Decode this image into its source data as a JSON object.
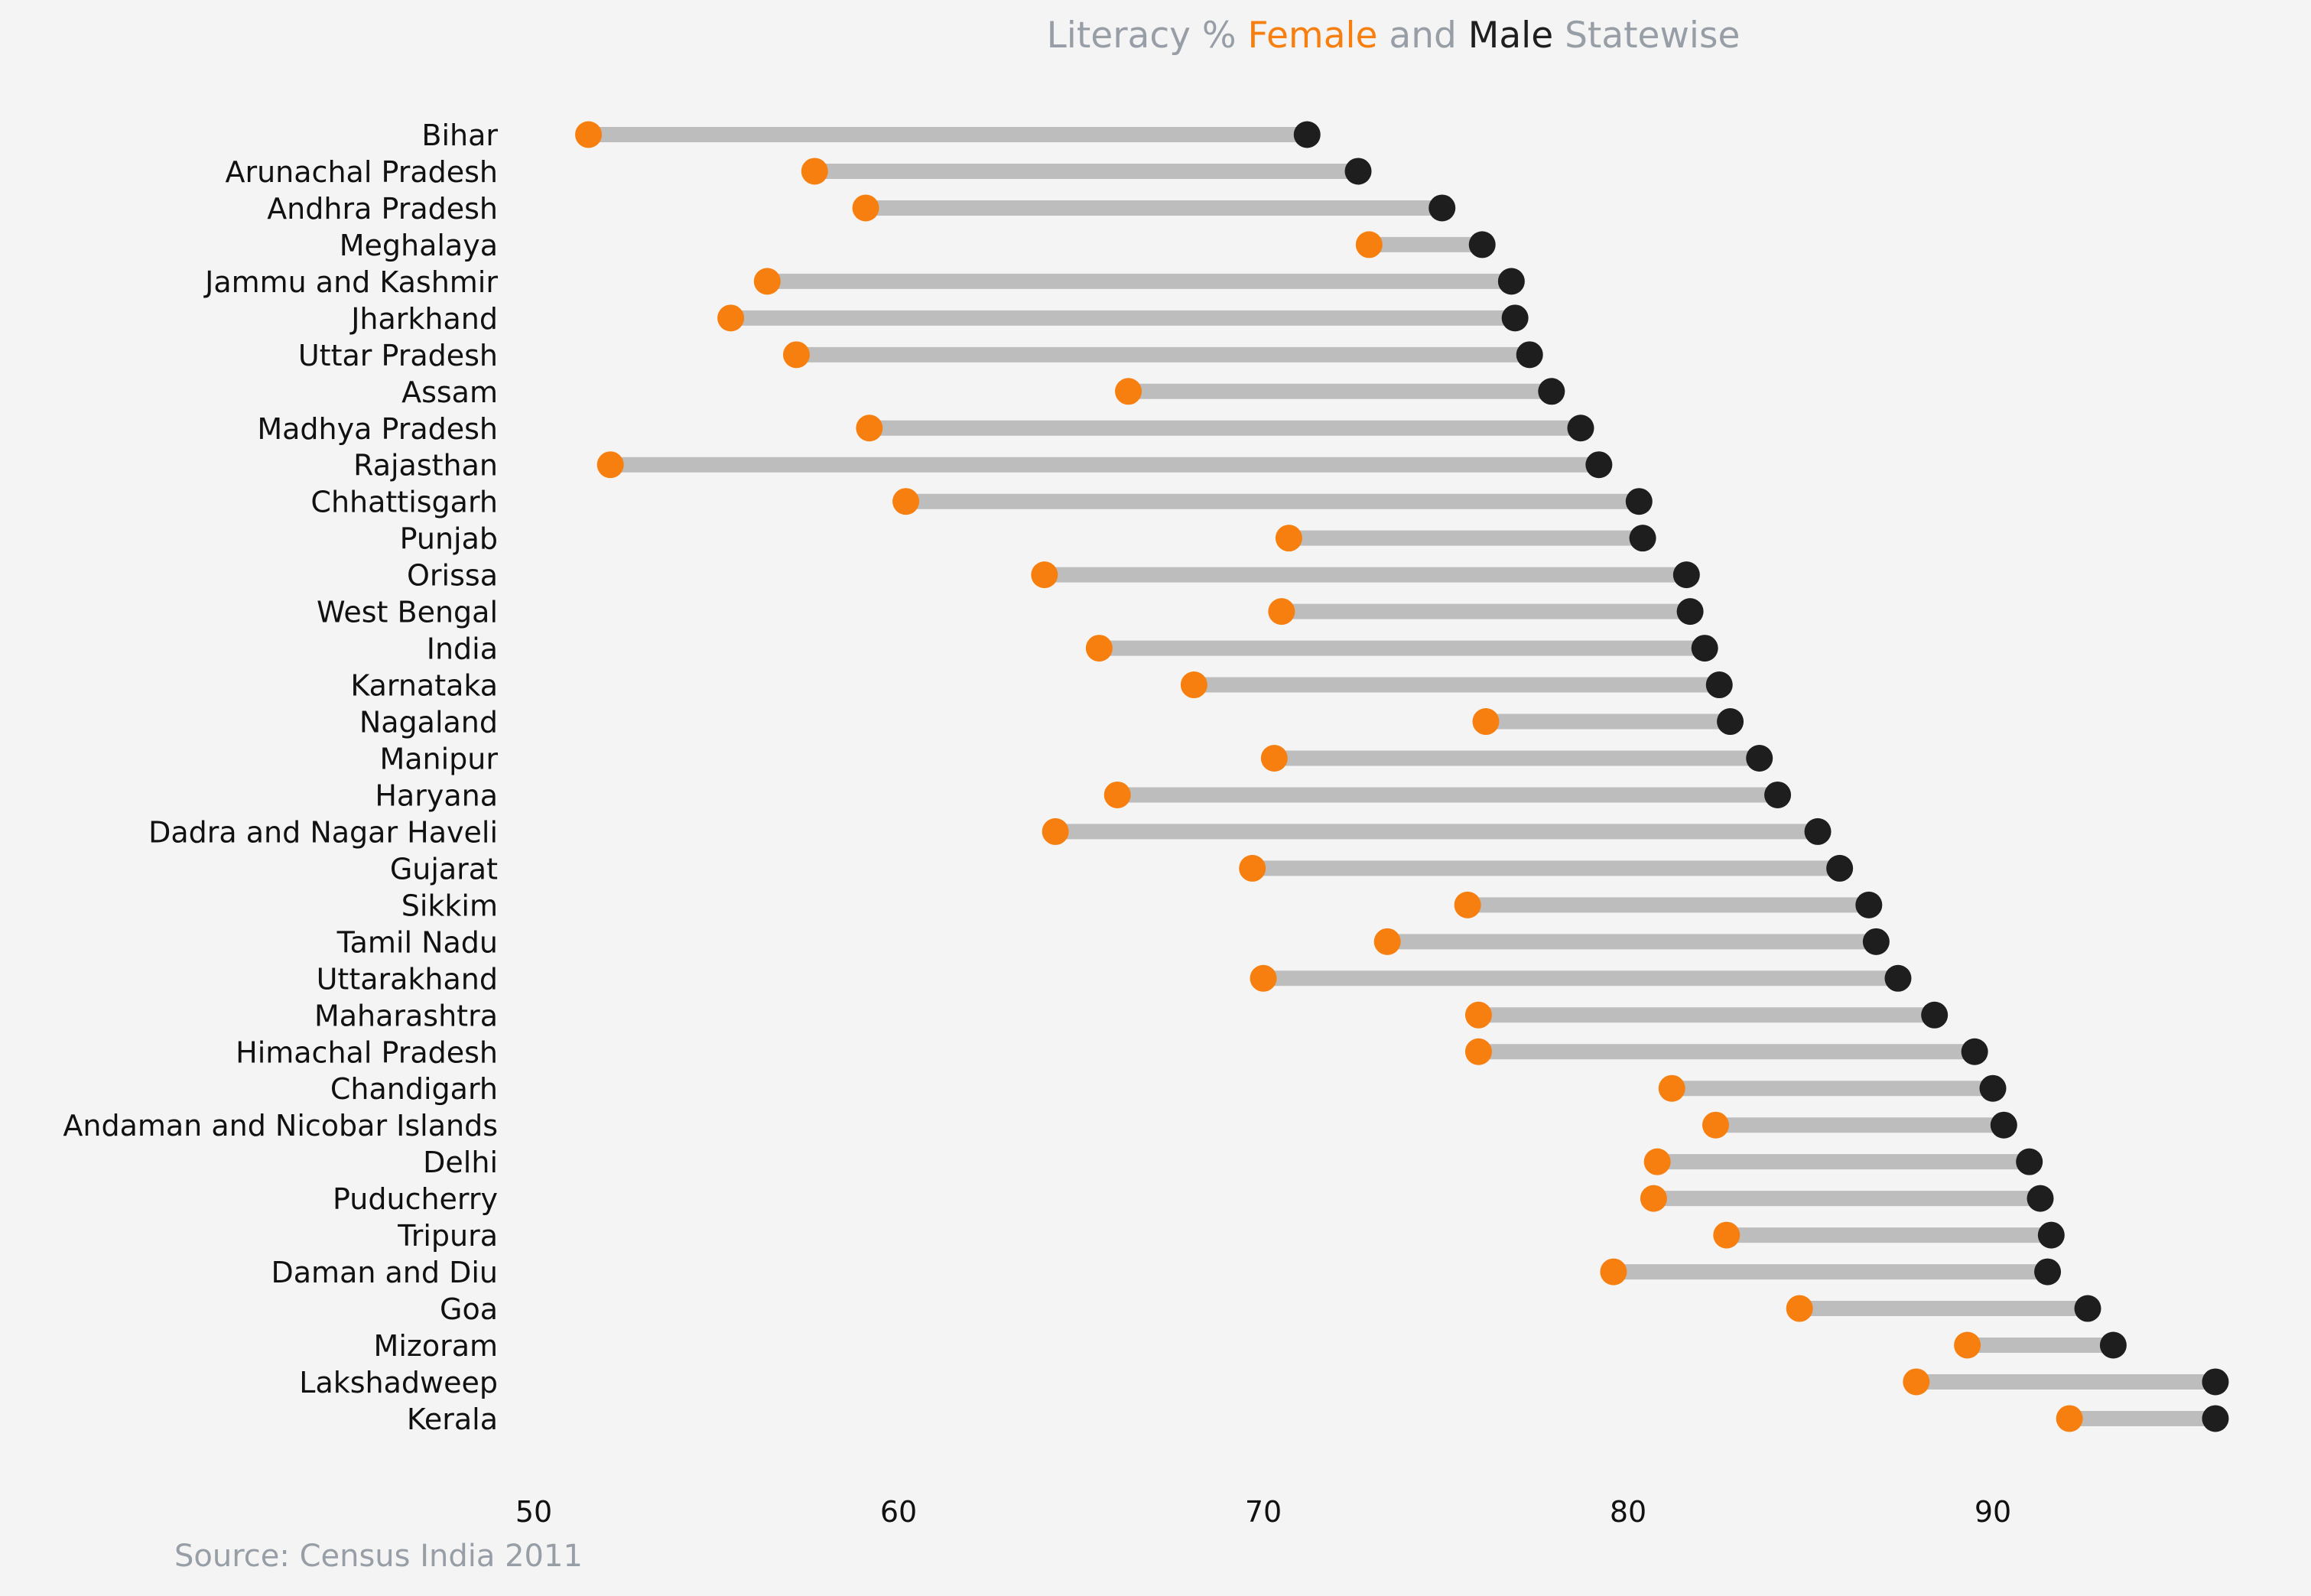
{
  "chart_data": {
    "type": "dumbbell",
    "title": {
      "parts": [
        {
          "text": "Literacy % ",
          "color": "#979ea6"
        },
        {
          "text": "Female",
          "color": "#f77f0f"
        },
        {
          "text": " and ",
          "color": "#979ea6"
        },
        {
          "text": "Male",
          "color": "#1e1e1e"
        },
        {
          "text": " Statewise",
          "color": "#979ea6"
        }
      ]
    },
    "source": "Source: Census India 2011",
    "xlim": [
      50,
      97
    ],
    "xticks": [
      50,
      60,
      70,
      80,
      90
    ],
    "series": [
      {
        "name": "Female",
        "color": "#f77f0f"
      },
      {
        "name": "Male",
        "color": "#1e1e1e"
      }
    ],
    "connector_color": "#bdbdbd",
    "rows": [
      {
        "state": "Bihar",
        "female": 51.5,
        "male": 71.2
      },
      {
        "state": "Arunachal Pradesh",
        "female": 57.7,
        "male": 72.6
      },
      {
        "state": "Andhra Pradesh",
        "female": 59.1,
        "male": 74.9
      },
      {
        "state": "Meghalaya",
        "female": 72.9,
        "male": 76.0
      },
      {
        "state": "Jammu and Kashmir",
        "female": 56.4,
        "male": 76.8
      },
      {
        "state": "Jharkhand",
        "female": 55.4,
        "male": 76.9
      },
      {
        "state": "Uttar Pradesh",
        "female": 57.2,
        "male": 77.3
      },
      {
        "state": "Assam",
        "female": 66.3,
        "male": 77.9
      },
      {
        "state": "Madhya Pradesh",
        "female": 59.2,
        "male": 78.7
      },
      {
        "state": "Rajasthan",
        "female": 52.1,
        "male": 79.2
      },
      {
        "state": "Chhattisgarh",
        "female": 60.2,
        "male": 80.3
      },
      {
        "state": "Punjab",
        "female": 70.7,
        "male": 80.4
      },
      {
        "state": "Orissa",
        "female": 64.0,
        "male": 81.6
      },
      {
        "state": "West Bengal",
        "female": 70.5,
        "male": 81.7
      },
      {
        "state": "India",
        "female": 65.5,
        "male": 82.1
      },
      {
        "state": "Karnataka",
        "female": 68.1,
        "male": 82.5
      },
      {
        "state": "Nagaland",
        "female": 76.1,
        "male": 82.8
      },
      {
        "state": "Manipur",
        "female": 70.3,
        "male": 83.6
      },
      {
        "state": "Haryana",
        "female": 66.0,
        "male": 84.1
      },
      {
        "state": "Dadra and Nagar Haveli",
        "female": 64.3,
        "male": 85.2
      },
      {
        "state": "Gujarat",
        "female": 69.7,
        "male": 85.8
      },
      {
        "state": "Sikkim",
        "female": 75.6,
        "male": 86.6
      },
      {
        "state": "Tamil Nadu",
        "female": 73.4,
        "male": 86.8
      },
      {
        "state": "Uttarakhand",
        "female": 70.0,
        "male": 87.4
      },
      {
        "state": "Maharashtra",
        "female": 75.9,
        "male": 88.4
      },
      {
        "state": "Himachal Pradesh",
        "female": 75.9,
        "male": 89.5
      },
      {
        "state": "Chandigarh",
        "female": 81.2,
        "male": 90.0
      },
      {
        "state": "Andaman and Nicobar Islands",
        "female": 82.4,
        "male": 90.3
      },
      {
        "state": "Delhi",
        "female": 80.8,
        "male": 91.0
      },
      {
        "state": "Puducherry",
        "female": 80.7,
        "male": 91.3
      },
      {
        "state": "Tripura",
        "female": 82.7,
        "male": 91.6
      },
      {
        "state": "Daman and Diu",
        "female": 79.6,
        "male": 91.5
      },
      {
        "state": "Goa",
        "female": 84.7,
        "male": 92.6
      },
      {
        "state": "Mizoram",
        "female": 89.3,
        "male": 93.3
      },
      {
        "state": "Lakshadweep",
        "female": 87.9,
        "male": 96.1
      },
      {
        "state": "Kerala",
        "female": 92.1,
        "male": 96.1
      }
    ]
  }
}
